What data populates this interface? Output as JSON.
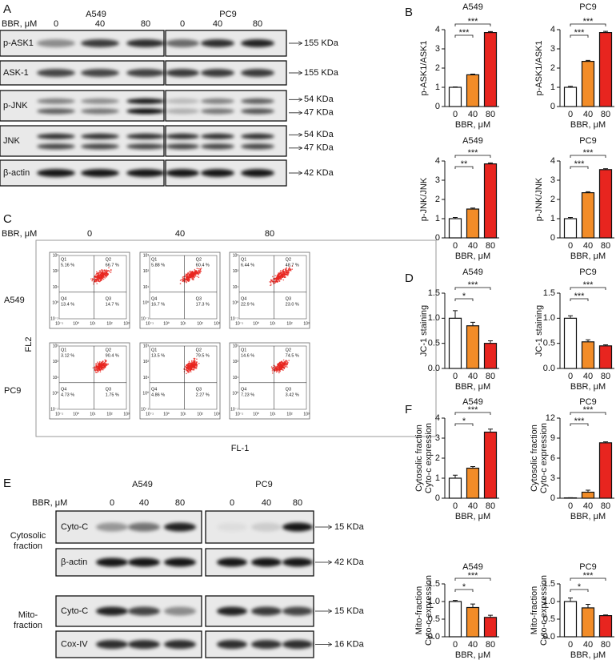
{
  "panel_labels": [
    "A",
    "B",
    "C",
    "D",
    "E",
    "F"
  ],
  "blot_a": {
    "treatment_label": "BBR, μM",
    "doses": [
      "0",
      "40",
      "80"
    ],
    "cell_lines": [
      "A549",
      "PC9"
    ],
    "rows": [
      "p-ASK1",
      "ASK-1",
      "p-JNK",
      "JNK",
      "β-actin"
    ],
    "sizes": [
      [
        "155 KDa"
      ],
      [
        "155 KDa"
      ],
      [
        "54 KDa",
        "47 KDa"
      ],
      [
        "54 KDa",
        "47 KDa"
      ],
      [
        "42 KDa"
      ]
    ]
  },
  "flow_c": {
    "treatment_label": "BBR, μM",
    "doses": [
      "0",
      "40",
      "80"
    ],
    "cell_lines": [
      "A549",
      "PC9"
    ],
    "x_axis": "FL-1",
    "y_axis": "FL2",
    "quadrants": [
      "Q1",
      "Q2",
      "Q3",
      "Q4"
    ],
    "tick_labels": [
      "10⁻¹",
      "10⁰",
      "10¹",
      "10²",
      "10³"
    ],
    "plots": [
      [
        [
          "5.16 %",
          "66.7 %",
          "14.7 %",
          "13.4 %"
        ],
        [
          "5.88 %",
          "60.4 %",
          "17.3 %",
          "16.7 %"
        ],
        [
          "6.44 %",
          "48.7 %",
          "23.0 %",
          "22.9 %"
        ]
      ],
      [
        [
          "3.12 %",
          "90.4 %",
          "1.75 %",
          "4.73 %"
        ],
        [
          "13.5 %",
          "79.5 %",
          "2.27 %",
          "4.86 %"
        ],
        [
          "14.6 %",
          "74.5 %",
          "3.42 %",
          "7.23 %"
        ]
      ]
    ]
  },
  "blot_e": {
    "treatment_label": "BBR, μM",
    "doses": [
      "0",
      "40",
      "80"
    ],
    "cell_lines": [
      "A549",
      "PC9"
    ],
    "groups": [
      {
        "name": [
          "Cytosolic",
          "fraction"
        ],
        "rows": [
          "Cyto-C",
          "β-actin"
        ]
      },
      {
        "name": [
          "Mito-",
          "fraction"
        ],
        "rows": [
          "Cyto-C",
          "Cox-IV"
        ]
      }
    ],
    "sizes": [
      "15 KDa",
      "42 KDa",
      "15 KDa",
      "16 KDa"
    ]
  },
  "chart_data": [
    {
      "type": "bar",
      "title": "A549",
      "ylabel": [
        "p-ASK1/ASK1"
      ],
      "xlabel": "BBR, μM",
      "categories": [
        "0",
        "40",
        "80"
      ],
      "values": [
        1.0,
        1.65,
        3.85
      ],
      "errors": [
        0.02,
        0.04,
        0.05
      ],
      "colors": [
        "#ffffff",
        "#f28c28",
        "#e8251f"
      ],
      "ylim": [
        0,
        4
      ],
      "yticks": [
        0,
        1,
        2,
        3,
        4
      ],
      "significance": [
        "***",
        "***"
      ]
    },
    {
      "type": "bar",
      "title": "PC9",
      "ylabel": [
        "p-ASK1/ASK1"
      ],
      "xlabel": "BBR, μM",
      "categories": [
        "0",
        "40",
        "80"
      ],
      "values": [
        1.0,
        2.35,
        3.85
      ],
      "errors": [
        0.05,
        0.05,
        0.06
      ],
      "colors": [
        "#ffffff",
        "#f28c28",
        "#e8251f"
      ],
      "ylim": [
        0,
        4
      ],
      "yticks": [
        0,
        1,
        2,
        3,
        4
      ],
      "significance": [
        "***",
        "***"
      ]
    },
    {
      "type": "bar",
      "title": "A549",
      "ylabel": [
        "p-JNK/JNK"
      ],
      "xlabel": "BBR, μM",
      "categories": [
        "0",
        "40",
        "80"
      ],
      "values": [
        1.0,
        1.5,
        3.85
      ],
      "errors": [
        0.06,
        0.05,
        0.05
      ],
      "colors": [
        "#ffffff",
        "#f28c28",
        "#e8251f"
      ],
      "ylim": [
        0,
        4
      ],
      "yticks": [
        0,
        1,
        2,
        3,
        4
      ],
      "significance": [
        "**",
        "***"
      ]
    },
    {
      "type": "bar",
      "title": "PC9",
      "ylabel": [
        "p-JNK/JNK"
      ],
      "xlabel": "BBR, μM",
      "categories": [
        "0",
        "40",
        "80"
      ],
      "values": [
        1.0,
        2.35,
        3.55
      ],
      "errors": [
        0.06,
        0.05,
        0.05
      ],
      "colors": [
        "#ffffff",
        "#f28c28",
        "#e8251f"
      ],
      "ylim": [
        0,
        4
      ],
      "yticks": [
        0,
        1,
        2,
        3,
        4
      ],
      "significance": [
        "***",
        "***"
      ]
    },
    {
      "type": "bar",
      "title": "A549",
      "ylabel": [
        "JC-1 staining"
      ],
      "xlabel": "BBR, μM",
      "categories": [
        "0",
        "40",
        "80"
      ],
      "values": [
        1.0,
        0.85,
        0.5
      ],
      "errors": [
        0.15,
        0.07,
        0.05
      ],
      "colors": [
        "#ffffff",
        "#f28c28",
        "#e8251f"
      ],
      "ylim": [
        0,
        1.5
      ],
      "yticks": [
        {
          "value": 0,
          "label": "0.0"
        },
        0.5,
        {
          "value": 1,
          "label": "1.0"
        },
        1.5
      ],
      "significance": [
        "*",
        "***"
      ]
    },
    {
      "type": "bar",
      "title": "PC9",
      "ylabel": [
        "JC-1 staining"
      ],
      "xlabel": "BBR, μM",
      "categories": [
        "0",
        "40",
        "80"
      ],
      "values": [
        1.0,
        0.53,
        0.45
      ],
      "errors": [
        0.05,
        0.04,
        0.02
      ],
      "colors": [
        "#ffffff",
        "#f28c28",
        "#e8251f"
      ],
      "ylim": [
        0,
        1.5
      ],
      "yticks": [
        {
          "value": 0,
          "label": "0.0"
        },
        0.5,
        {
          "value": 1,
          "label": "1.0"
        },
        1.5
      ],
      "significance": [
        "***",
        "***"
      ]
    },
    {
      "type": "bar",
      "title": "A549",
      "ylabel": [
        "Cytosolic fraction",
        "Cyto-c expression"
      ],
      "xlabel": "BBR, μM",
      "categories": [
        "0",
        "40",
        "80"
      ],
      "values": [
        1.0,
        1.5,
        3.3
      ],
      "errors": [
        0.15,
        0.08,
        0.15
      ],
      "colors": [
        "#ffffff",
        "#f28c28",
        "#e8251f"
      ],
      "ylim": [
        0,
        4
      ],
      "yticks": [
        0,
        1,
        2,
        3,
        4
      ],
      "significance": [
        "*",
        "***"
      ]
    },
    {
      "type": "bar",
      "title": "PC9",
      "ylabel": [
        "Cytosolic fraction",
        "Cyto-c expression"
      ],
      "xlabel": "BBR, μM",
      "categories": [
        "0",
        "40",
        "80"
      ],
      "values": [
        0.05,
        0.9,
        8.3
      ],
      "errors": [
        0.02,
        0.3,
        0.15
      ],
      "colors": [
        "#ffffff",
        "#f28c28",
        "#e8251f"
      ],
      "ylim": [
        0,
        12
      ],
      "yticks": [
        0,
        3,
        6,
        9,
        12
      ],
      "significance": [
        "***",
        "***"
      ]
    },
    {
      "type": "bar",
      "title": "A549",
      "ylabel": [
        "Mito-fraction",
        "Cyto-c expression"
      ],
      "xlabel": "BBR, μM",
      "categories": [
        "0",
        "40",
        "80"
      ],
      "values": [
        1.0,
        0.83,
        0.55
      ],
      "errors": [
        0.03,
        0.1,
        0.06
      ],
      "colors": [
        "#ffffff",
        "#f28c28",
        "#e8251f"
      ],
      "ylim": [
        0,
        1.5
      ],
      "yticks": [
        {
          "value": 0,
          "label": "0.0"
        },
        0.5,
        {
          "value": 1,
          "label": "1.0"
        },
        1.5
      ],
      "significance": [
        "*",
        "***"
      ]
    },
    {
      "type": "bar",
      "title": "PC9",
      "ylabel": [
        "Mito-fraction",
        "Cyto-c expression"
      ],
      "xlabel": "BBR, μM",
      "categories": [
        "0",
        "40",
        "80"
      ],
      "values": [
        1.0,
        0.82,
        0.6
      ],
      "errors": [
        0.1,
        0.1,
        0.02
      ],
      "colors": [
        "#ffffff",
        "#f28c28",
        "#e8251f"
      ],
      "ylim": [
        0,
        1.5
      ],
      "yticks": [
        {
          "value": 0,
          "label": "0.0"
        },
        0.5,
        {
          "value": 1,
          "label": "1.0"
        },
        1.5
      ],
      "significance": [
        "*",
        "***"
      ]
    }
  ]
}
